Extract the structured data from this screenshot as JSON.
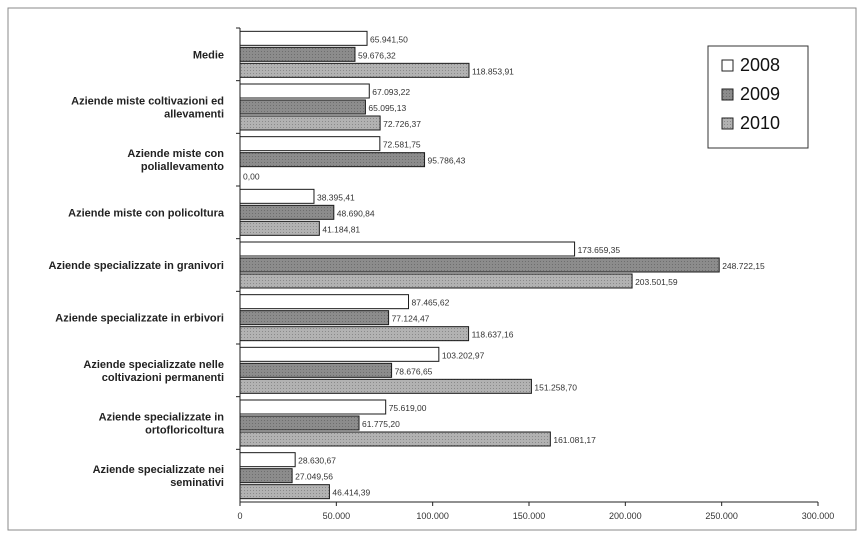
{
  "chart_data": {
    "type": "bar",
    "orientation": "horizontal",
    "categories": [
      "Medie",
      "Aziende miste coltivazioni ed allevamenti",
      "Aziende miste con poliallevamento",
      "Aziende miste con policoltura",
      "Aziende specializzate in granivori",
      "Aziende specializzate in erbivori",
      "Aziende specializzate nelle coltivazioni permanenti",
      "Aziende specializzate in ortofloricoltura",
      "Aziende specializzate nei seminativi"
    ],
    "category_lines": [
      [
        "Medie"
      ],
      [
        "Aziende miste coltivazioni ed",
        "allevamenti"
      ],
      [
        "Aziende miste con",
        "poliallevamento"
      ],
      [
        "Aziende miste con policoltura"
      ],
      [
        "Aziende specializzate in granivori"
      ],
      [
        "Aziende specializzate in erbivori"
      ],
      [
        "Aziende specializzate nelle",
        "coltivazioni permanenti"
      ],
      [
        "Aziende specializzate in",
        "ortofloricoltura"
      ],
      [
        "Aziende specializzate nei",
        "seminativi"
      ]
    ],
    "series": [
      {
        "name": "2008",
        "color": "#ffffff",
        "values": [
          65941.5,
          67093.22,
          72581.75,
          38395.41,
          173659.35,
          87465.62,
          103202.97,
          75619.0,
          28630.67
        ],
        "labels": [
          "65.941,50",
          "67.093,22",
          "72.581,75",
          "38.395,41",
          "173.659,35",
          "87.465,62",
          "103.202,97",
          "75.619,00",
          "28.630,67"
        ]
      },
      {
        "name": "2009",
        "color": "#9a9a9a",
        "values": [
          59676.32,
          65095.13,
          95786.43,
          48690.84,
          248722.15,
          77124.47,
          78676.65,
          61775.2,
          27049.56
        ],
        "labels": [
          "59.676,32",
          "65.095,13",
          "95.786,43",
          "48.690,84",
          "248.722,15",
          "77.124,47",
          "78.676,65",
          "61.775,20",
          "27.049,56"
        ]
      },
      {
        "name": "2010",
        "color": "#b4b4b4",
        "values": [
          118853.91,
          72726.37,
          0.0,
          41184.81,
          203501.59,
          118637.16,
          151258.7,
          161081.17,
          46414.39
        ],
        "labels": [
          "118.853,91",
          "72.726,37",
          "0,00",
          "41.184,81",
          "203.501,59",
          "118.637,16",
          "151.258,70",
          "161.081,17",
          "46.414,39"
        ]
      }
    ],
    "xlim": [
      0,
      300000
    ],
    "x_ticks": [
      0,
      50000,
      100000,
      150000,
      200000,
      250000,
      300000
    ],
    "x_tick_labels": [
      "0",
      "50.000",
      "100.000",
      "150.000",
      "200.000",
      "250.000",
      "300.000"
    ],
    "legend_position": "top-right",
    "grid": false,
    "title": "",
    "xlabel": "",
    "ylabel": ""
  }
}
